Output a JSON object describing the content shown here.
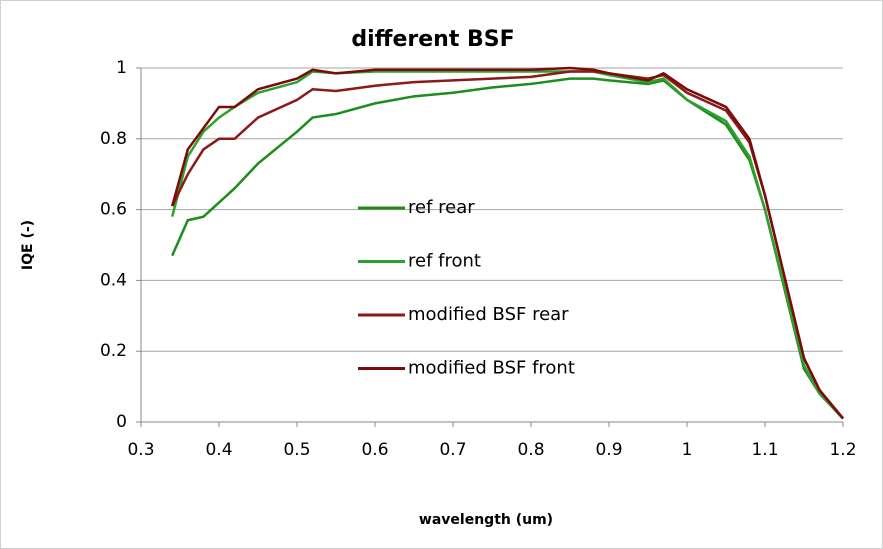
{
  "chart_data": {
    "type": "line",
    "title": "different BSF",
    "xlabel": "wavelength (um)",
    "ylabel": "IQE (-)",
    "x": [
      0.34,
      0.36,
      0.38,
      0.4,
      0.42,
      0.45,
      0.5,
      0.52,
      0.55,
      0.6,
      0.65,
      0.7,
      0.75,
      0.8,
      0.85,
      0.88,
      0.9,
      0.95,
      0.97,
      1.0,
      1.05,
      1.08,
      1.1,
      1.15,
      1.17,
      1.2
    ],
    "series": [
      {
        "name": "ref rear",
        "color": "#1e8c1e",
        "values": [
          0.47,
          0.57,
          0.58,
          0.62,
          0.66,
          0.73,
          0.82,
          0.86,
          0.87,
          0.9,
          0.92,
          0.93,
          0.945,
          0.955,
          0.97,
          0.97,
          0.965,
          0.955,
          0.965,
          0.91,
          0.84,
          0.74,
          0.6,
          0.15,
          0.08,
          0.01
        ]
      },
      {
        "name": "ref front",
        "color": "#2fa02f",
        "values": [
          0.58,
          0.75,
          0.82,
          0.86,
          0.89,
          0.93,
          0.96,
          0.99,
          0.985,
          0.99,
          0.99,
          0.99,
          0.99,
          0.99,
          0.99,
          0.99,
          0.98,
          0.96,
          0.97,
          0.91,
          0.85,
          0.75,
          0.6,
          0.16,
          0.08,
          0.01
        ]
      },
      {
        "name": "modified BSF rear",
        "color": "#8b1a1a",
        "values": [
          0.61,
          0.7,
          0.77,
          0.8,
          0.8,
          0.86,
          0.91,
          0.94,
          0.935,
          0.95,
          0.96,
          0.965,
          0.97,
          0.975,
          0.99,
          0.99,
          0.985,
          0.97,
          0.98,
          0.93,
          0.88,
          0.79,
          0.64,
          0.18,
          0.09,
          0.01
        ]
      },
      {
        "name": "modified BSF front",
        "color": "#7a0c0c",
        "values": [
          0.61,
          0.77,
          0.83,
          0.89,
          0.89,
          0.94,
          0.97,
          0.995,
          0.985,
          0.995,
          0.995,
          0.995,
          0.995,
          0.995,
          1.0,
          0.995,
          0.985,
          0.965,
          0.985,
          0.94,
          0.89,
          0.8,
          0.64,
          0.18,
          0.09,
          0.01
        ]
      }
    ],
    "xlim": [
      0.3,
      1.2
    ],
    "xticks": [
      0.3,
      0.4,
      0.5,
      0.6,
      0.7,
      0.8,
      0.9,
      1,
      1.1,
      1.2
    ],
    "ylim": [
      0,
      1
    ],
    "yticks": [
      0,
      0.2,
      0.4,
      0.6,
      0.8,
      1
    ],
    "grid": true
  }
}
